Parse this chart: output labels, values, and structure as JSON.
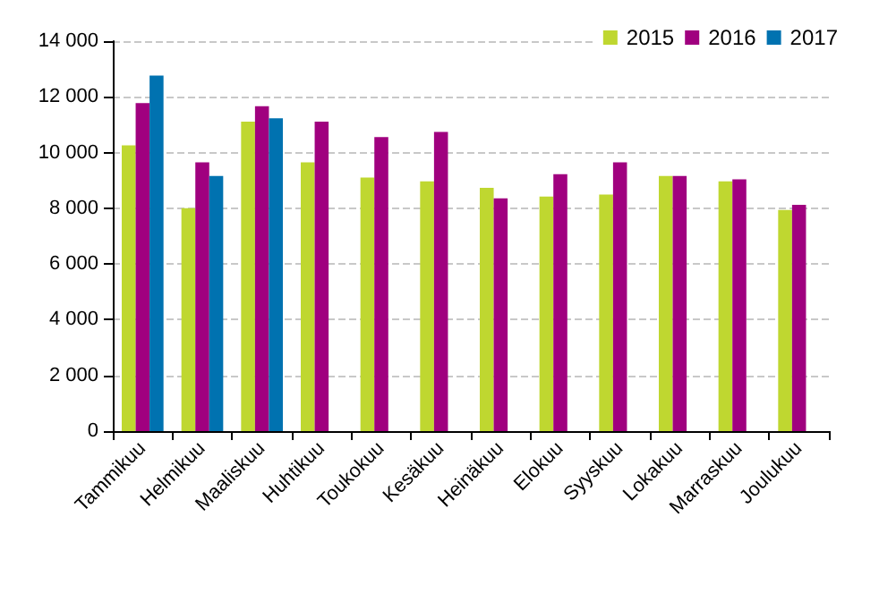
{
  "chart_data": {
    "type": "bar",
    "categories": [
      "Tammikuu",
      "Helmikuu",
      "Maaliskuu",
      "Huhtikuu",
      "Toukokuu",
      "Kesäkuu",
      "Heinäkuu",
      "Elokuu",
      "Syyskuu",
      "Lokakuu",
      "Marraskuu",
      "Joulukuu"
    ],
    "series": [
      {
        "name": "2015",
        "color": "#bfd730",
        "values": [
          10260,
          8000,
          11110,
          9650,
          9100,
          8970,
          8730,
          8420,
          8490,
          9160,
          8970,
          7940
        ]
      },
      {
        "name": "2016",
        "color": "#a0007f",
        "values": [
          11780,
          9650,
          11660,
          11110,
          10560,
          10740,
          8360,
          9220,
          9650,
          9160,
          9040,
          8120
        ]
      },
      {
        "name": "2017",
        "color": "#0072b0",
        "values": [
          12760,
          9160,
          11230,
          null,
          null,
          null,
          null,
          null,
          null,
          null,
          null,
          null
        ]
      }
    ],
    "ylim": [
      0,
      14000
    ],
    "yticks": [
      {
        "value": 0,
        "label": "0"
      },
      {
        "value": 2000,
        "label": "2 000"
      },
      {
        "value": 4000,
        "label": "4 000"
      },
      {
        "value": 6000,
        "label": "6 000"
      },
      {
        "value": 8000,
        "label": "8 000"
      },
      {
        "value": 10000,
        "label": "10 000"
      },
      {
        "value": 12000,
        "label": "12 000"
      },
      {
        "value": 14000,
        "label": "14 000"
      }
    ],
    "grid": "y",
    "legend": "top right"
  }
}
